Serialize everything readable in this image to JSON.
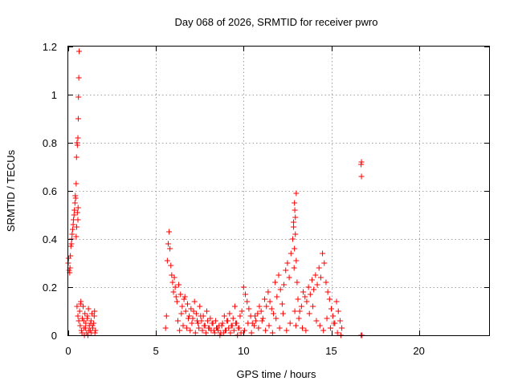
{
  "chart_data": {
    "type": "scatter",
    "title": "Day 068 of 2026, SRMTID for receiver pwro",
    "xlabel": "GPS time / hours",
    "ylabel": "SRMTID / TECUs",
    "xlim": [
      0,
      24
    ],
    "ylim": [
      0,
      1.2
    ],
    "xticks": [
      0,
      5,
      10,
      15,
      20
    ],
    "xtick_labels": [
      "0",
      "5",
      "10",
      "15",
      "20"
    ],
    "yticks": [
      0,
      0.2,
      0.4,
      0.6,
      0.8,
      1.0,
      1.2
    ],
    "ytick_labels": [
      "0",
      "0.2",
      "0.4",
      "0.6",
      "0.8",
      "1",
      "1.2"
    ],
    "grid": true,
    "marker": "plus",
    "color": "#ff0000",
    "series": [
      {
        "x": [
          0.0,
          0.02,
          0.05,
          0.08,
          0.1,
          0.12,
          0.15,
          0.18,
          0.2,
          0.22,
          0.25,
          0.28,
          0.3,
          0.33,
          0.35,
          0.38,
          0.4,
          0.42,
          0.45,
          0.47,
          0.5,
          0.52,
          0.55,
          0.57,
          0.58,
          0.6,
          0.62,
          0.55,
          0.48,
          0.52,
          0.56,
          0.45,
          0.5,
          0.55,
          0.6,
          0.65,
          0.68,
          0.72,
          0.75,
          0.8,
          0.85,
          0.9,
          0.95,
          1.0,
          1.05,
          1.1,
          1.15,
          1.2,
          1.25,
          1.3,
          1.35,
          1.4,
          1.45,
          1.5,
          1.55,
          0.7,
          0.78,
          0.88,
          0.98,
          1.08,
          1.18,
          1.28,
          1.38,
          1.48,
          1.52,
          0.92,
          1.12,
          1.32,
          5.55,
          5.6,
          5.65,
          5.7,
          5.75,
          5.8,
          5.85,
          5.9,
          5.95,
          6.0,
          6.05,
          6.1,
          6.15,
          6.2,
          6.3,
          6.4,
          6.5,
          6.6,
          6.7,
          6.8,
          6.9,
          7.0,
          7.1,
          7.2,
          7.3,
          7.4,
          7.5,
          7.6,
          7.7,
          7.8,
          7.9,
          8.0,
          8.1,
          8.2,
          8.3,
          8.4,
          8.5,
          8.6,
          8.7,
          8.8,
          8.9,
          9.0,
          9.1,
          9.2,
          9.3,
          9.4,
          9.5,
          9.6,
          9.7,
          9.8,
          9.9,
          6.25,
          6.35,
          6.45,
          6.55,
          6.65,
          6.75,
          6.85,
          6.95,
          7.05,
          7.15,
          7.25,
          7.35,
          7.45,
          7.55,
          7.65,
          7.75,
          7.85,
          7.95,
          8.05,
          8.15,
          8.25,
          8.35,
          8.45,
          8.55,
          8.65,
          8.75,
          8.85,
          8.95,
          9.05,
          9.15,
          9.25,
          9.35,
          9.45,
          9.55,
          9.65,
          9.75,
          9.85,
          10.0,
          10.1,
          10.2,
          10.3,
          10.4,
          10.5,
          10.6,
          10.7,
          10.8,
          10.9,
          11.0,
          11.1,
          11.2,
          11.3,
          11.4,
          11.5,
          11.6,
          11.7,
          11.8,
          11.9,
          12.0,
          12.1,
          12.2,
          12.3,
          12.4,
          12.5,
          12.6,
          12.7,
          12.8,
          12.85,
          12.9,
          12.95,
          13.0,
          13.05,
          13.1,
          13.2,
          13.3,
          13.4,
          13.5,
          13.6,
          13.7,
          13.8,
          13.9,
          14.0,
          14.1,
          14.2,
          14.3,
          14.4,
          14.5,
          14.6,
          14.7,
          14.8,
          14.9,
          15.0,
          15.1,
          15.2,
          15.3,
          15.4,
          15.5,
          15.6,
          10.05,
          10.25,
          10.45,
          10.65,
          10.85,
          11.05,
          11.25,
          11.45,
          11.65,
          11.85,
          12.05,
          12.25,
          12.45,
          12.65,
          12.88,
          12.92,
          12.98,
          13.15,
          13.35,
          13.55,
          13.75,
          13.95,
          14.15,
          14.35,
          14.55,
          14.75,
          14.95,
          15.15,
          15.35,
          15.55,
          12.95,
          12.9,
          13.0,
          12.85,
          12.92,
          16.7,
          16.75,
          16.72,
          16.7,
          16.72
        ],
        "y": [
          0.3,
          0.32,
          0.27,
          0.26,
          0.28,
          0.33,
          0.37,
          0.38,
          0.4,
          0.42,
          0.44,
          0.46,
          0.48,
          0.5,
          0.52,
          0.55,
          0.58,
          0.57,
          0.63,
          0.74,
          0.8,
          0.79,
          0.82,
          0.9,
          0.99,
          1.07,
          1.18,
          0.48,
          0.45,
          0.51,
          0.53,
          0.41,
          0.12,
          0.08,
          0.06,
          0.1,
          0.04,
          0.14,
          0.02,
          0.07,
          0.12,
          0.03,
          0.09,
          0.05,
          0.01,
          0.08,
          0.11,
          0.04,
          0.02,
          0.06,
          0.09,
          0.03,
          0.05,
          0.1,
          0.02,
          0.13,
          0.01,
          0.06,
          0.03,
          0.07,
          0.02,
          0.05,
          0.04,
          0.08,
          0.01,
          0.0,
          0.0,
          0.01,
          0.03,
          0.08,
          0.31,
          0.38,
          0.43,
          0.36,
          0.29,
          0.25,
          0.22,
          0.18,
          0.24,
          0.2,
          0.16,
          0.14,
          0.21,
          0.17,
          0.12,
          0.15,
          0.1,
          0.13,
          0.08,
          0.11,
          0.07,
          0.14,
          0.09,
          0.05,
          0.12,
          0.06,
          0.08,
          0.04,
          0.1,
          0.03,
          0.07,
          0.05,
          0.02,
          0.06,
          0.03,
          0.04,
          0.01,
          0.05,
          0.08,
          0.02,
          0.06,
          0.09,
          0.04,
          0.07,
          0.12,
          0.05,
          0.03,
          0.08,
          0.1,
          0.06,
          0.02,
          0.09,
          0.04,
          0.16,
          0.03,
          0.07,
          0.02,
          0.05,
          0.1,
          0.01,
          0.06,
          0.03,
          0.08,
          0.02,
          0.04,
          0.01,
          0.06,
          0.03,
          0.02,
          0.05,
          0.01,
          0.03,
          0.02,
          0.0,
          0.04,
          0.01,
          0.02,
          0.06,
          0.03,
          0.01,
          0.04,
          0.02,
          0.05,
          0.0,
          0.03,
          0.01,
          0.2,
          0.17,
          0.14,
          0.11,
          0.08,
          0.05,
          0.04,
          0.06,
          0.09,
          0.12,
          0.1,
          0.07,
          0.15,
          0.12,
          0.18,
          0.14,
          0.11,
          0.09,
          0.22,
          0.16,
          0.25,
          0.19,
          0.13,
          0.21,
          0.27,
          0.3,
          0.24,
          0.34,
          0.4,
          0.45,
          0.36,
          0.42,
          0.31,
          0.22,
          0.15,
          0.1,
          0.12,
          0.18,
          0.16,
          0.14,
          0.2,
          0.17,
          0.23,
          0.19,
          0.25,
          0.21,
          0.28,
          0.24,
          0.34,
          0.3,
          0.22,
          0.18,
          0.15,
          0.11,
          0.08,
          0.05,
          0.14,
          0.1,
          0.06,
          0.03,
          0.02,
          0.05,
          0.01,
          0.08,
          0.03,
          0.06,
          0.02,
          0.04,
          0.01,
          0.07,
          0.03,
          0.09,
          0.02,
          0.05,
          0.28,
          0.1,
          0.04,
          0.07,
          0.03,
          0.02,
          0.09,
          0.12,
          0.06,
          0.04,
          0.02,
          0.07,
          0.03,
          0.05,
          0.01,
          0.0,
          0.49,
          0.55,
          0.59,
          0.47,
          0.52,
          0.0,
          0.0,
          0.72,
          0.71,
          0.66
        ]
      }
    ]
  }
}
